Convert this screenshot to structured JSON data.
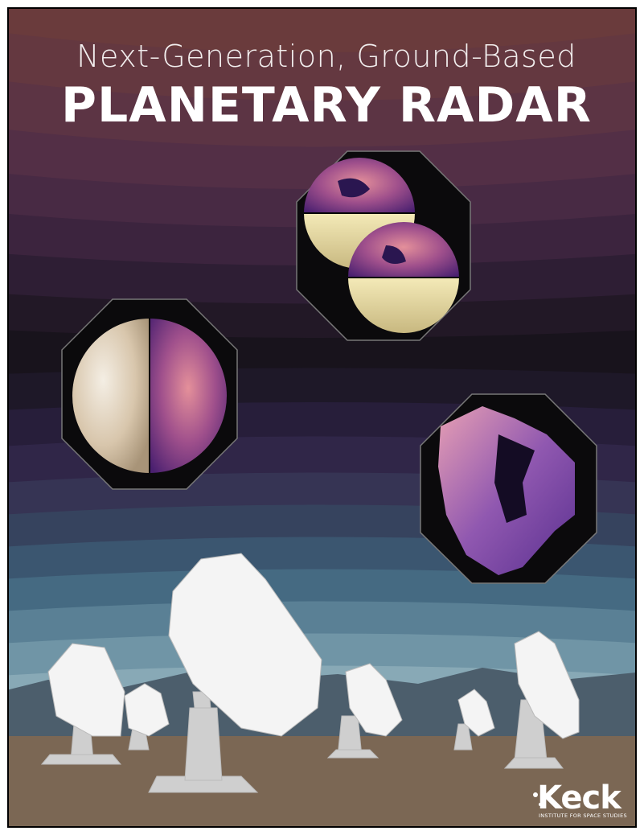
{
  "header": {
    "subtitle": "Next-Generation, Ground-Based",
    "title": "PLANETARY RADAR"
  },
  "logo": {
    "name": "Keck",
    "tagline": "INSTITUTE FOR SPACE STUDIES"
  }
}
